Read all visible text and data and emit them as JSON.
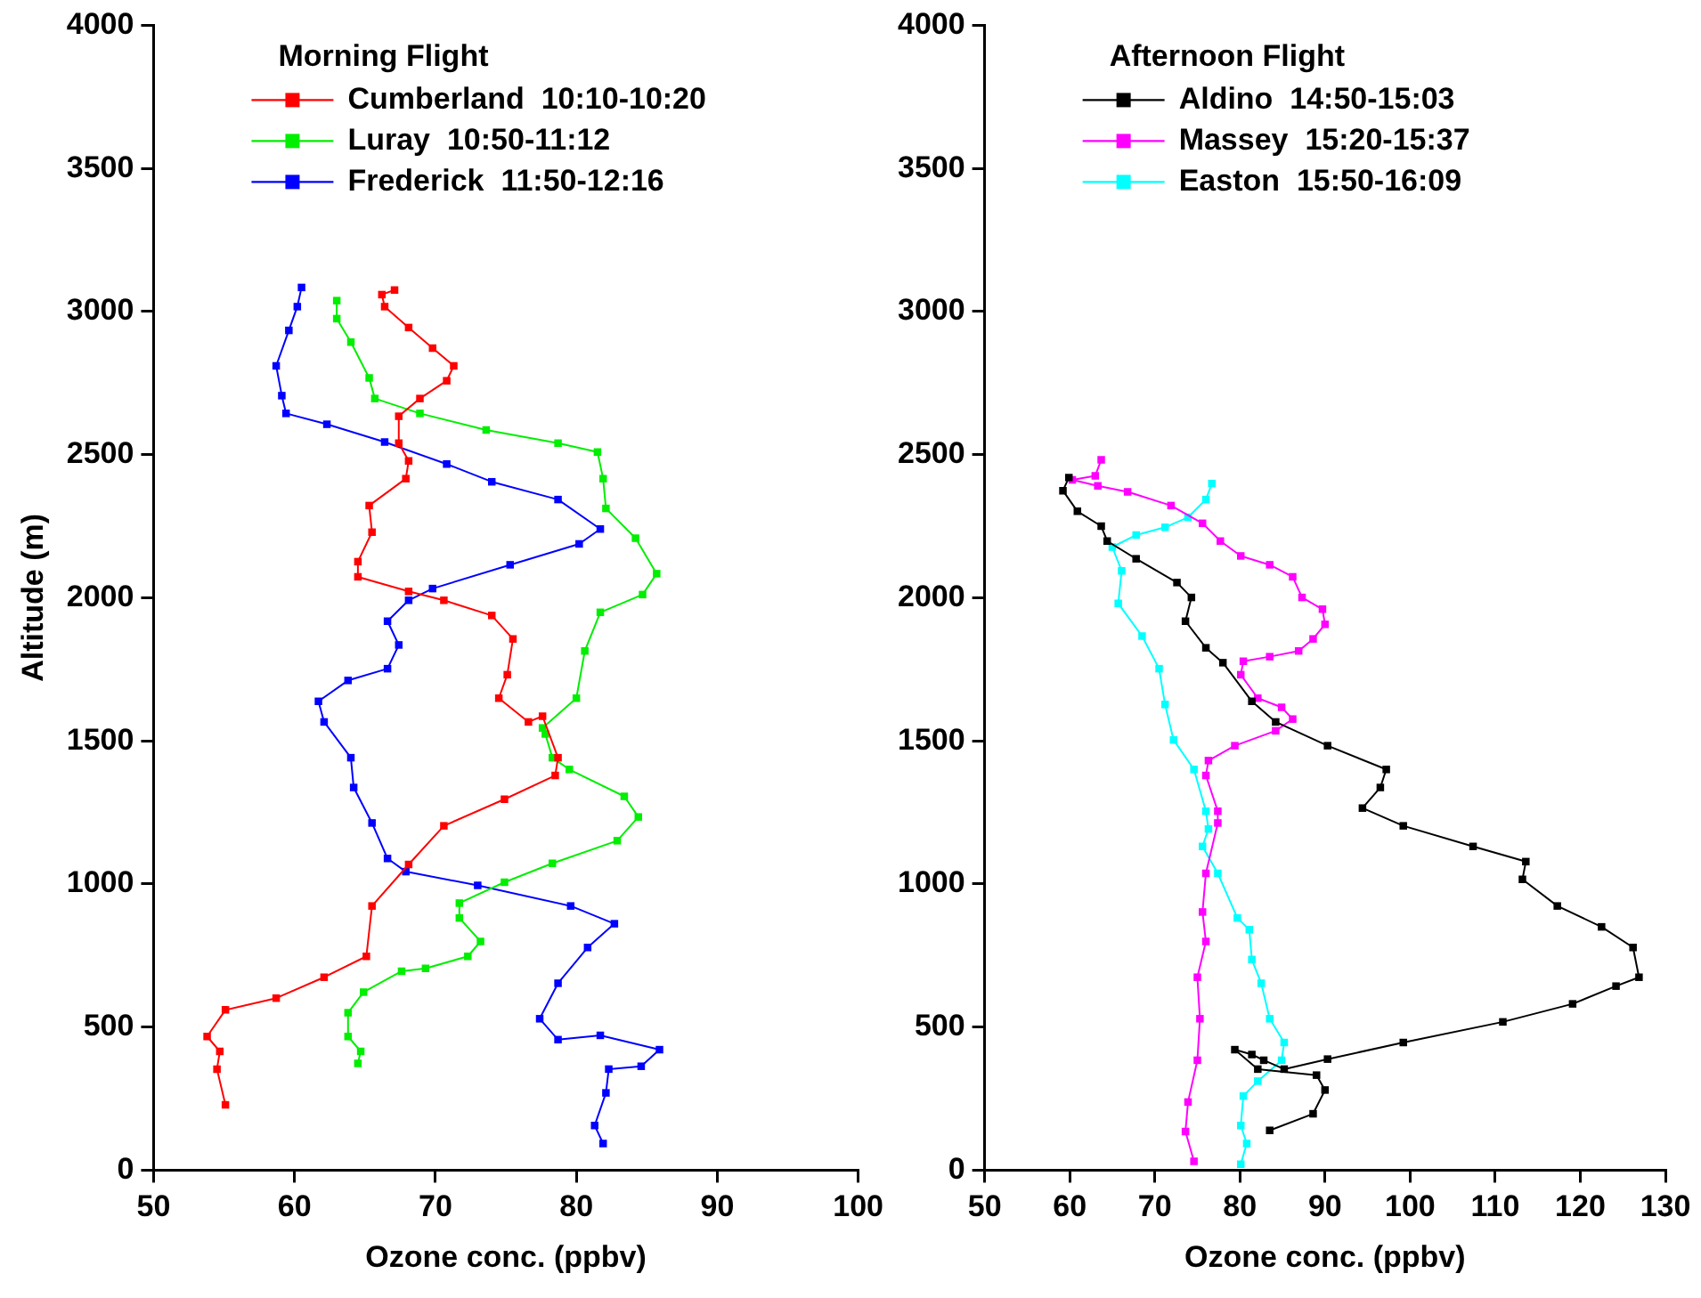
{
  "chart_data": [
    {
      "type": "line",
      "xlabel": "Ozone conc. (ppbv)",
      "ylabel": "Altitude (m)",
      "legend_title": "Morning Flight",
      "legend": "top left",
      "marker": "square",
      "line_style": "solid",
      "xlim": [
        50,
        100
      ],
      "xticks": [
        50,
        60,
        70,
        80,
        90,
        100
      ],
      "ylim": [
        0,
        4000
      ],
      "yticks": [
        0,
        500,
        1000,
        1500,
        2000,
        2500,
        3000,
        3500,
        4000
      ],
      "series": [
        {
          "name": "Cumberland  10:10-10:20",
          "color": "#ff0000",
          "x": [
            67.1,
            66.2,
            66.4,
            68.1,
            69.8,
            71.3,
            70.8,
            68.9,
            67.4,
            67.4,
            68.1,
            67.9,
            65.3,
            65.5,
            64.5,
            64.5,
            68.1,
            70.6,
            74.0,
            75.5,
            75.1,
            74.5,
            76.6,
            77.6,
            78.7,
            78.5,
            74.9,
            70.6,
            68.1,
            65.5,
            65.1,
            62.1,
            58.7,
            55.1,
            53.8,
            54.7,
            54.5,
            55.1
          ],
          "values": [
            3075,
            3059,
            3017,
            2944,
            2872,
            2810,
            2758,
            2696,
            2634,
            2540,
            2478,
            2416,
            2322,
            2229,
            2126,
            2073,
            2022,
            1991,
            1938,
            1856,
            1731,
            1649,
            1566,
            1586,
            1441,
            1379,
            1296,
            1203,
            1068,
            923,
            747,
            674,
            601,
            560,
            467,
            415,
            353,
            228
          ]
        },
        {
          "name": "Luray  10:50-11:12",
          "color": "#00ee00",
          "x": [
            63.0,
            63.0,
            64.0,
            65.3,
            65.7,
            68.9,
            73.6,
            78.7,
            81.5,
            81.9,
            82.1,
            84.2,
            85.7,
            84.7,
            81.7,
            80.6,
            80.0,
            77.6,
            77.8,
            78.3,
            79.5,
            83.4,
            84.4,
            82.9,
            78.3,
            74.9,
            71.7,
            71.7,
            73.2,
            72.3,
            69.3,
            67.6,
            64.9,
            63.8,
            63.8,
            64.7,
            64.5
          ],
          "values": [
            3038,
            2975,
            2893,
            2768,
            2696,
            2644,
            2586,
            2540,
            2509,
            2416,
            2312,
            2208,
            2084,
            2011,
            1949,
            1814,
            1649,
            1545,
            1524,
            1441,
            1400,
            1306,
            1234,
            1151,
            1072,
            1006,
            933,
            881,
            799,
            747,
            705,
            695,
            622,
            550,
            467,
            415,
            373
          ]
        },
        {
          "name": "Frederick  11:50-12:16",
          "color": "#0000ff",
          "x": [
            60.5,
            60.2,
            59.6,
            58.7,
            59.1,
            59.4,
            62.3,
            66.4,
            70.8,
            74.0,
            78.7,
            81.7,
            80.2,
            75.3,
            69.8,
            68.1,
            66.6,
            67.4,
            66.6,
            63.8,
            61.7,
            62.1,
            64.0,
            64.2,
            65.5,
            66.6,
            67.9,
            73.0,
            79.6,
            82.7,
            80.8,
            78.7,
            77.4,
            78.7,
            81.7,
            85.9,
            84.6,
            82.3,
            82.1,
            81.3,
            81.9
          ],
          "values": [
            3084,
            3017,
            2934,
            2810,
            2706,
            2644,
            2606,
            2544,
            2467,
            2405,
            2343,
            2240,
            2188,
            2115,
            2032,
            1991,
            1918,
            1835,
            1752,
            1711,
            1638,
            1566,
            1441,
            1337,
            1213,
            1089,
            1043,
            995,
            923,
            861,
            778,
            653,
            529,
            456,
            471,
            421,
            363,
            353,
            270,
            156,
            93
          ]
        }
      ]
    },
    {
      "type": "line",
      "xlabel": "Ozone conc. (ppbv)",
      "legend_title": "Afternoon Flight",
      "legend": "top left",
      "marker": "square",
      "line_style": "solid",
      "xlim": [
        50,
        130
      ],
      "xticks": [
        50,
        60,
        70,
        80,
        90,
        100,
        110,
        120,
        130
      ],
      "ylim": [
        0,
        4000
      ],
      "yticks": [
        0,
        500,
        1000,
        1500,
        2000,
        2500,
        3000,
        3500,
        4000
      ],
      "series": [
        {
          "name": "Aldino  14:50-15:03",
          "color": "#000000",
          "x": [
            59.9,
            59.2,
            60.9,
            63.7,
            64.4,
            67.8,
            72.6,
            74.3,
            73.6,
            76.0,
            78.0,
            81.4,
            84.2,
            90.3,
            97.2,
            96.5,
            94.4,
            99.2,
            107.4,
            113.6,
            113.2,
            117.3,
            122.5,
            126.2,
            126.9,
            124.2,
            119.1,
            110.9,
            99.2,
            90.3,
            85.2,
            82.8,
            81.4,
            79.4,
            82.1,
            89.0,
            90.0,
            88.6,
            83.5
          ],
          "values": [
            2420,
            2374,
            2302,
            2250,
            2198,
            2136,
            2053,
            2001,
            1918,
            1825,
            1773,
            1638,
            1566,
            1483,
            1400,
            1337,
            1265,
            1203,
            1131,
            1078,
            1016,
            923,
            850,
            778,
            674,
            643,
            581,
            518,
            446,
            388,
            353,
            384,
            404,
            421,
            353,
            332,
            280,
            197,
            139
          ]
        },
        {
          "name": "Massey  15:20-15:37",
          "color": "#ff00ff",
          "x": [
            63.7,
            63.0,
            60.3,
            63.3,
            66.8,
            71.9,
            75.6,
            77.7,
            80.1,
            83.5,
            86.2,
            87.3,
            89.7,
            90.0,
            88.6,
            86.9,
            83.5,
            80.4,
            80.1,
            82.1,
            84.9,
            86.2,
            84.2,
            79.4,
            76.3,
            76.0,
            77.4,
            77.4,
            76.0,
            75.6,
            76.0,
            75.0,
            75.3,
            75.0,
            73.9,
            73.6,
            74.6
          ],
          "values": [
            2482,
            2426,
            2412,
            2391,
            2370,
            2322,
            2260,
            2198,
            2146,
            2115,
            2073,
            2001,
            1960,
            1907,
            1856,
            1814,
            1794,
            1778,
            1731,
            1649,
            1617,
            1576,
            1535,
            1483,
            1431,
            1379,
            1254,
            1213,
            1037,
            902,
            799,
            674,
            529,
            384,
            238,
            135,
            31
          ]
        },
        {
          "name": "Easton  15:50-16:09",
          "color": "#00ffff",
          "x": [
            76.7,
            76.0,
            73.9,
            71.2,
            67.8,
            65.0,
            66.1,
            65.7,
            68.5,
            70.5,
            71.2,
            72.2,
            74.6,
            76.0,
            76.3,
            75.6,
            77.4,
            79.7,
            81.1,
            81.4,
            82.5,
            83.5,
            85.2,
            84.9,
            82.1,
            80.4,
            80.1,
            80.8,
            80.1
          ],
          "values": [
            2399,
            2343,
            2281,
            2246,
            2219,
            2177,
            2094,
            1980,
            1866,
            1752,
            1627,
            1503,
            1400,
            1254,
            1192,
            1131,
            1037,
            881,
            840,
            736,
            653,
            529,
            446,
            384,
            311,
            259,
            156,
            93,
            21
          ]
        }
      ]
    }
  ]
}
